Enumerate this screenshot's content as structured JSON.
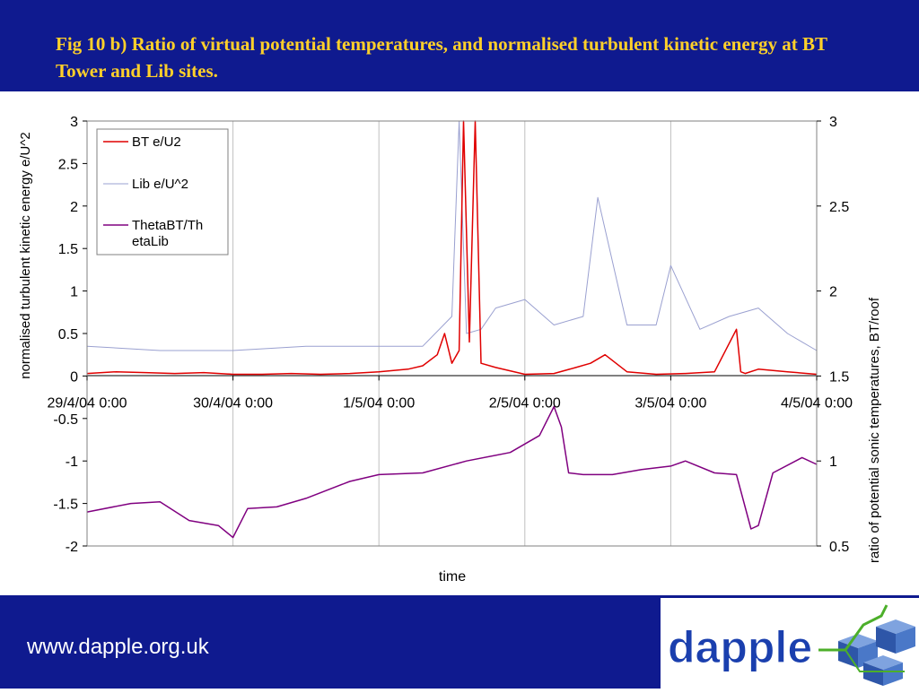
{
  "header": {
    "title": "Fig 10 b) Ratio of virtual potential temperatures, and normalised turbulent kinetic energy at BT Tower and Lib sites."
  },
  "footer": {
    "url": "www.dapple.org.uk",
    "logo_text": "dapple"
  },
  "colors": {
    "band": "#0f1a8f",
    "title": "#ffd02a",
    "bt": "#e00000",
    "lib": "#9aa0d0",
    "theta": "#800080",
    "logo_text": "#1a3fae",
    "logo_cube": "#4a78c8",
    "logo_accent": "#4caf2a"
  },
  "chart_data": {
    "type": "line",
    "xlabel": "time",
    "ylabel_left": "normalised turbulent kinetic energy e/U^2",
    "ylabel_right": "ratio of potential sonic temperatures, BT/roof",
    "ylim_left": [
      -2,
      3
    ],
    "ylim_right": [
      0.5,
      3
    ],
    "yticks_left": [
      "3",
      "2.5",
      "2",
      "1.5",
      "1",
      "0.5",
      "0",
      "-0.5",
      "-1",
      "-1.5",
      "-2"
    ],
    "yticks_right": [
      "3",
      "2.5",
      "2",
      "1.5",
      "1",
      "0.5"
    ],
    "xlim_days": [
      0,
      5
    ],
    "xticks": [
      "29/4/04 0:00",
      "30/4/04 0:00",
      "1/5/04 0:00",
      "2/5/04 0:00",
      "3/5/04 0:00",
      "4/5/04 0:00"
    ],
    "grid": "vertical lines at x ticks",
    "legend": "top-left",
    "series": [
      {
        "name": "BT e/U2",
        "axis": "left",
        "color": "#e00000",
        "x": [
          0,
          0.2,
          0.4,
          0.6,
          0.8,
          1.0,
          1.2,
          1.4,
          1.6,
          1.8,
          2.0,
          2.2,
          2.3,
          2.4,
          2.45,
          2.5,
          2.55,
          2.58,
          2.62,
          2.66,
          2.7,
          2.8,
          3.0,
          3.2,
          3.35,
          3.45,
          3.55,
          3.7,
          3.9,
          4.1,
          4.3,
          4.45,
          4.48,
          4.51,
          4.6,
          4.8,
          5.0
        ],
        "y": [
          0.03,
          0.05,
          0.04,
          0.03,
          0.04,
          0.02,
          0.02,
          0.03,
          0.02,
          0.03,
          0.05,
          0.08,
          0.12,
          0.25,
          0.5,
          0.15,
          0.3,
          3.0,
          0.4,
          3.0,
          0.15,
          0.1,
          0.02,
          0.03,
          0.1,
          0.15,
          0.25,
          0.05,
          0.02,
          0.03,
          0.05,
          0.55,
          0.05,
          0.03,
          0.08,
          0.05,
          0.02
        ]
      },
      {
        "name": "Lib e/U^2",
        "axis": "left",
        "color": "#9aa0d0",
        "x": [
          0,
          0.5,
          1.0,
          1.5,
          2.0,
          2.3,
          2.5,
          2.55,
          2.6,
          2.7,
          2.8,
          3.0,
          3.2,
          3.4,
          3.5,
          3.7,
          3.9,
          4.0,
          4.2,
          4.4,
          4.6,
          4.8,
          5.0
        ],
        "y": [
          0.35,
          0.3,
          0.3,
          0.35,
          0.35,
          0.35,
          0.7,
          3.0,
          0.5,
          0.55,
          0.8,
          0.9,
          0.6,
          0.7,
          2.1,
          0.6,
          0.6,
          1.3,
          0.55,
          0.7,
          0.8,
          0.5,
          0.3
        ]
      },
      {
        "name": "ThetaBT/ThetaLib",
        "axis": "right",
        "color": "#800080",
        "x": [
          0,
          0.3,
          0.5,
          0.7,
          0.9,
          1.0,
          1.1,
          1.3,
          1.5,
          1.8,
          2.0,
          2.3,
          2.6,
          2.9,
          3.1,
          3.2,
          3.25,
          3.3,
          3.4,
          3.6,
          3.8,
          4.0,
          4.1,
          4.3,
          4.45,
          4.55,
          4.6,
          4.7,
          4.9,
          5.0
        ],
        "y": [
          0.7,
          0.75,
          0.76,
          0.65,
          0.62,
          0.55,
          0.72,
          0.73,
          0.78,
          0.88,
          0.92,
          0.93,
          1.0,
          1.05,
          1.15,
          1.32,
          1.2,
          0.93,
          0.92,
          0.92,
          0.95,
          0.97,
          1.0,
          0.93,
          0.92,
          0.6,
          0.62,
          0.93,
          1.02,
          0.98
        ]
      }
    ]
  }
}
